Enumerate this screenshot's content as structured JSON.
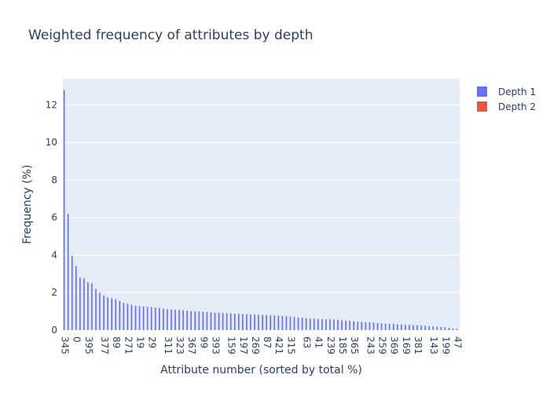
{
  "chart_data": {
    "type": "bar",
    "title": "Weighted frequency of attributes by depth",
    "xlabel": "Attribute number (sorted by total %)",
    "ylabel": "Frequency (%)",
    "ylim": [
      0,
      13.4
    ],
    "yticks": [
      0,
      2,
      4,
      6,
      8,
      10,
      12
    ],
    "xtick_labels": [
      "345",
      "0",
      "395",
      "377",
      "89",
      "271",
      "19",
      "29",
      "311",
      "323",
      "367",
      "99",
      "393",
      "159",
      "197",
      "269",
      "87",
      "421",
      "315",
      "63",
      "41",
      "239",
      "185",
      "365",
      "243",
      "259",
      "369",
      "169",
      "381",
      "143",
      "199",
      "47"
    ],
    "x_count": 100,
    "legend_position": "top-right",
    "grid": true,
    "series": [
      {
        "name": "Depth 1",
        "color": "#636efa",
        "values": [
          12.8,
          6.2,
          3.95,
          3.4,
          2.8,
          2.75,
          2.55,
          2.5,
          2.2,
          2.0,
          1.85,
          1.75,
          1.7,
          1.65,
          1.55,
          1.45,
          1.4,
          1.35,
          1.3,
          1.28,
          1.26,
          1.24,
          1.22,
          1.2,
          1.18,
          1.15,
          1.12,
          1.1,
          1.09,
          1.08,
          1.06,
          1.04,
          1.02,
          1.0,
          0.99,
          0.98,
          0.96,
          0.95,
          0.93,
          0.92,
          0.91,
          0.9,
          0.89,
          0.88,
          0.87,
          0.86,
          0.85,
          0.84,
          0.83,
          0.82,
          0.81,
          0.8,
          0.79,
          0.78,
          0.77,
          0.76,
          0.74,
          0.72,
          0.7,
          0.68,
          0.66,
          0.64,
          0.62,
          0.61,
          0.6,
          0.59,
          0.58,
          0.57,
          0.56,
          0.55,
          0.53,
          0.51,
          0.49,
          0.47,
          0.45,
          0.44,
          0.43,
          0.42,
          0.4,
          0.38,
          0.36,
          0.35,
          0.34,
          0.33,
          0.31,
          0.3,
          0.29,
          0.28,
          0.27,
          0.26,
          0.25,
          0.24,
          0.22,
          0.2,
          0.19,
          0.17,
          0.15,
          0.12,
          0.09,
          0.06
        ]
      },
      {
        "name": "Depth 2",
        "color": "#ef553b",
        "values": []
      }
    ]
  }
}
